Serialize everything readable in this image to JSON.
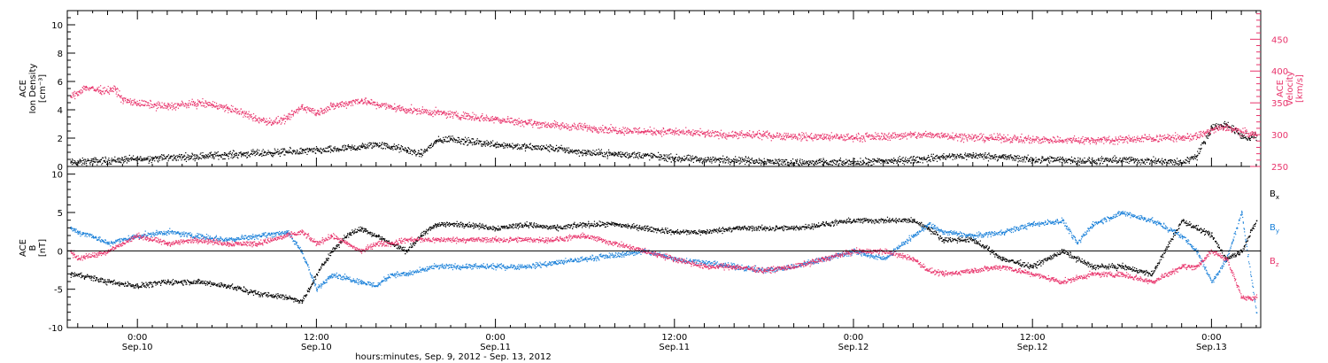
{
  "colors": {
    "black": "#000000",
    "pink": "#e8336b",
    "blue": "#1a80d9"
  },
  "xaxis": {
    "title": "hours:minutes, Sep.  9, 2012 - Sep. 13, 2012",
    "ticks": [
      {
        "time": "0:00",
        "date": "Sep.10"
      },
      {
        "time": "12:00",
        "date": "Sep.10"
      },
      {
        "time": "0:00",
        "date": "Sep.11"
      },
      {
        "time": "12:00",
        "date": "Sep.11"
      },
      {
        "time": "0:00",
        "date": "Sep.12"
      },
      {
        "time": "12:00",
        "date": "Sep.12"
      },
      {
        "time": "0:00",
        "date": "Sep.13"
      }
    ]
  },
  "chart_data": [
    {
      "type": "scatter",
      "panel": "top",
      "ylabel_left": [
        "ACE",
        "Ion Density",
        "[cm⁻³]"
      ],
      "ylabel_right": [
        "ACE",
        "Velocity",
        "[km/s]"
      ],
      "ylim_left": [
        0,
        11
      ],
      "ylim_right": [
        250,
        495
      ],
      "yticks_left": [
        "0",
        "2",
        "4",
        "6",
        "8",
        "10"
      ],
      "yticks_right": [
        "250",
        "300",
        "350",
        "400",
        "450"
      ],
      "x_unit": "hours since Sep 9 2012 00:00",
      "xlim": [
        19.3,
        99.3
      ],
      "series": [
        {
          "axis": "left",
          "color": "black",
          "x": [
            19.5,
            21,
            23,
            25,
            27,
            29,
            31,
            33,
            35,
            37,
            38,
            39,
            40,
            41,
            42,
            43,
            44,
            45,
            46,
            48,
            50,
            52,
            54,
            56,
            58,
            60,
            62,
            64,
            66,
            68,
            70,
            72,
            74,
            76,
            78,
            80,
            82,
            84,
            86,
            88,
            90,
            92,
            94,
            95,
            96,
            97,
            98,
            98.5,
            99
          ],
          "y": [
            0.3,
            0.4,
            0.5,
            0.6,
            0.7,
            0.8,
            0.9,
            1.0,
            1.1,
            1.2,
            1.3,
            1.4,
            1.6,
            1.4,
            1.2,
            0.9,
            1.8,
            2.0,
            1.8,
            1.6,
            1.4,
            1.3,
            1.0,
            0.9,
            0.8,
            0.6,
            0.5,
            0.5,
            0.4,
            0.3,
            0.3,
            0.3,
            0.4,
            0.5,
            0.7,
            0.8,
            0.7,
            0.5,
            0.5,
            0.4,
            0.5,
            0.4,
            0.3,
            0.8,
            2.8,
            3.0,
            2.2,
            2.0,
            2.2
          ]
        },
        {
          "axis": "right",
          "color": "pink",
          "x": [
            19.5,
            20.5,
            21.5,
            22.5,
            23,
            24,
            26,
            28,
            29,
            30,
            31,
            32,
            33,
            34,
            35,
            36,
            37,
            38,
            39,
            40,
            42,
            44,
            46,
            48,
            50,
            52,
            54,
            56,
            58,
            60,
            62,
            64,
            66,
            68,
            70,
            72,
            74,
            76,
            78,
            80,
            82,
            84,
            86,
            88,
            90,
            92,
            94,
            95,
            96,
            97,
            98,
            99
          ],
          "y": [
            360,
            375,
            370,
            372,
            355,
            350,
            345,
            350,
            348,
            342,
            335,
            325,
            320,
            325,
            345,
            335,
            345,
            350,
            355,
            348,
            340,
            335,
            330,
            325,
            320,
            315,
            312,
            308,
            306,
            305,
            302,
            300,
            300,
            298,
            297,
            296,
            298,
            300,
            300,
            296,
            295,
            293,
            292,
            292,
            293,
            295,
            296,
            298,
            308,
            312,
            305,
            300
          ]
        }
      ]
    },
    {
      "type": "scatter",
      "panel": "bottom",
      "ylabel_left": [
        "ACE",
        "B",
        "[nT]"
      ],
      "ylim": [
        -10,
        11
      ],
      "yticks": [
        "-10",
        "-5",
        "0",
        "5",
        "10"
      ],
      "x_unit": "hours since Sep 9 2012 00:00",
      "xlim": [
        19.3,
        99.3
      ],
      "legend": [
        "Bx",
        "By",
        "Bz"
      ],
      "legend_position": "right",
      "series": [
        {
          "name": "Bx",
          "color": "black",
          "x": [
            19.5,
            20,
            22,
            24,
            26,
            28,
            30,
            32,
            34,
            35,
            35.5,
            36,
            37,
            38,
            39,
            40,
            41,
            42,
            43,
            44,
            46,
            48,
            50,
            52,
            54,
            56,
            58,
            60,
            62,
            64,
            66,
            68,
            70,
            72,
            74,
            76,
            77,
            78,
            80,
            82,
            84,
            86,
            88,
            90,
            92,
            94,
            95,
            96,
            97,
            98,
            99
          ],
          "y": [
            -3,
            -3,
            -4,
            -4.5,
            -4,
            -4,
            -4.5,
            -5.5,
            -6,
            -6.5,
            -5,
            -3,
            0,
            2,
            3,
            2,
            1,
            0,
            2,
            3.5,
            3.5,
            3,
            3.5,
            3,
            3.5,
            3.5,
            3,
            2.5,
            2.5,
            3,
            3,
            3,
            3.5,
            4,
            4,
            4,
            3,
            1.5,
            1.5,
            -1,
            -2,
            0,
            -2,
            -2,
            -3,
            4,
            3,
            2,
            -1,
            0,
            4
          ]
        },
        {
          "name": "By",
          "color": "blue",
          "x": [
            19.5,
            20,
            21,
            22,
            24,
            26,
            28,
            30,
            32,
            34,
            35,
            36,
            37,
            38,
            39,
            40,
            41,
            42,
            44,
            46,
            48,
            50,
            52,
            54,
            56,
            58,
            60,
            62,
            64,
            66,
            68,
            70,
            72,
            74,
            76,
            77,
            78,
            80,
            82,
            84,
            86,
            87,
            88,
            90,
            92,
            94,
            95,
            96,
            97,
            98,
            99
          ],
          "y": [
            3,
            2.5,
            2,
            1,
            2,
            2.5,
            2,
            1.5,
            2,
            2.5,
            0,
            -5,
            -3,
            -3.5,
            -4,
            -4.5,
            -3,
            -3,
            -2,
            -2,
            -2,
            -2,
            -1.5,
            -1,
            -0.5,
            0,
            -1,
            -1.5,
            -2,
            -2.5,
            -2,
            -1,
            0,
            -1,
            2,
            3.5,
            2.5,
            2,
            2.5,
            3.5,
            4,
            1,
            3.5,
            5,
            4,
            2,
            0,
            -4,
            -1,
            5,
            -8
          ]
        },
        {
          "name": "Bz",
          "color": "pink",
          "x": [
            19.5,
            20,
            22,
            24,
            26,
            28,
            30,
            32,
            34,
            35,
            36,
            37,
            38,
            39,
            40,
            41,
            42,
            44,
            46,
            48,
            50,
            52,
            54,
            56,
            58,
            60,
            62,
            64,
            66,
            68,
            70,
            72,
            74,
            76,
            77,
            78,
            80,
            82,
            84,
            86,
            88,
            90,
            92,
            94,
            95,
            96,
            97,
            98,
            99
          ],
          "y": [
            0,
            -1,
            0,
            2,
            1,
            1.5,
            1,
            1,
            2,
            2.5,
            1,
            2,
            1,
            0,
            1,
            1,
            1.5,
            1.5,
            1.5,
            1.5,
            1.5,
            1.5,
            2,
            1,
            0,
            -1,
            -2,
            -2,
            -2.5,
            -2,
            -1,
            0,
            0,
            -1,
            -2.5,
            -3,
            -2.5,
            -2,
            -3,
            -4,
            -3,
            -3,
            -4,
            -2,
            -2,
            0,
            -1,
            -6,
            -6
          ]
        }
      ]
    }
  ]
}
